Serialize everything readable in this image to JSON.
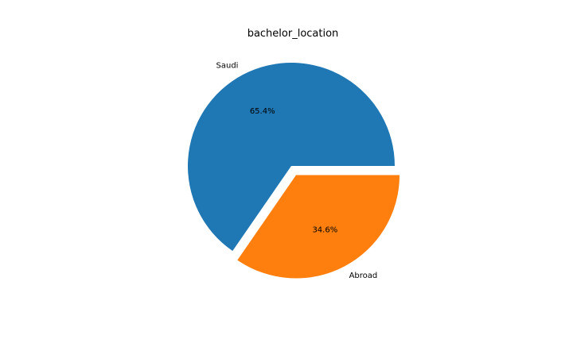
{
  "chart_data": {
    "type": "pie",
    "title": "bachelor_location",
    "series": [
      {
        "label": "Saudi",
        "value": 65.4,
        "pct_label": "65.4%",
        "color": "#1f77b4",
        "explode": false
      },
      {
        "label": "Abroad",
        "value": 34.6,
        "pct_label": "34.6%",
        "color": "#ff7f0e",
        "explode": true
      }
    ],
    "start_angle": 0,
    "direction": "counterclockwise",
    "legend": false
  }
}
